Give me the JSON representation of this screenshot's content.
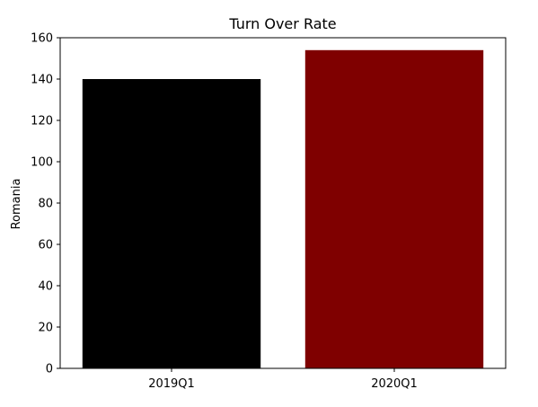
{
  "chart_data": {
    "type": "bar",
    "title": "Turn Over Rate",
    "xlabel": "",
    "ylabel": "Romania",
    "categories": [
      "2019Q1",
      "2020Q1"
    ],
    "values": [
      140,
      154
    ],
    "colors": [
      "#000000",
      "#7f0000"
    ],
    "ylim": [
      0,
      160
    ],
    "yticks": [
      0,
      20,
      40,
      60,
      80,
      100,
      120,
      140,
      160
    ],
    "grid": false,
    "legend": "none"
  }
}
